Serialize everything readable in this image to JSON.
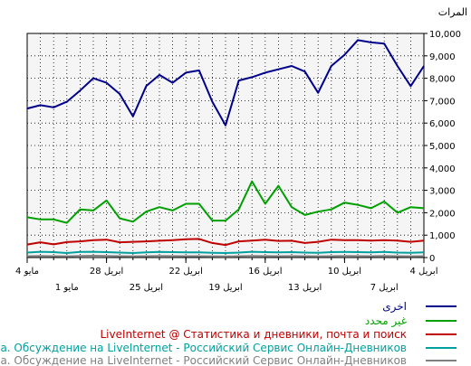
{
  "chart_data": {
    "type": "line",
    "ylabel": "المرات",
    "ylim": [
      0,
      10000
    ],
    "yticks": [
      "0",
      "1,000",
      "2,000",
      "3,000",
      "4,000",
      "5,000",
      "6,000",
      "7,000",
      "8,000",
      "9,000",
      "10,000"
    ],
    "grid": true,
    "legend_position": "bottom-right",
    "x_upper_labels": [
      {
        "label": "4 مايو",
        "index": 0
      },
      {
        "label": "28 ابريل",
        "index": 6
      },
      {
        "label": "22 ابريل",
        "index": 12
      },
      {
        "label": "16 ابريل",
        "index": 18
      },
      {
        "label": "10 ابريل",
        "index": 24
      },
      {
        "label": "4 ابريل",
        "index": 30
      }
    ],
    "x_lower_labels": [
      {
        "label": "1 مايو",
        "index": 3
      },
      {
        "label": "25 ابريل",
        "index": 9
      },
      {
        "label": "19 ابريل",
        "index": 15
      },
      {
        "label": "13 ابريل",
        "index": 21
      },
      {
        "label": "7 ابريل",
        "index": 27
      }
    ],
    "series": [
      {
        "name": "اخرى",
        "color": "#00008b",
        "values": [
          6650,
          6800,
          6700,
          6950,
          7450,
          8000,
          7800,
          7300,
          6300,
          7650,
          8150,
          7800,
          8250,
          8350,
          6950,
          5900,
          7900,
          8050,
          8250,
          8400,
          8550,
          8300,
          7350,
          8550,
          9050,
          9700,
          9600,
          9550,
          8550,
          7650,
          8550
        ]
      },
      {
        "name": "غير محدد",
        "color": "#00a000",
        "values": [
          1800,
          1700,
          1700,
          1550,
          2150,
          2100,
          2550,
          1750,
          1600,
          2050,
          2250,
          2100,
          2400,
          2400,
          1650,
          1650,
          2150,
          3400,
          2400,
          3200,
          2250,
          1900,
          2050,
          2150,
          2450,
          2350,
          2200,
          2500,
          2000,
          2250,
          2200
        ]
      },
      {
        "name": "LiveInternet @ Статистика и дневники, почта и поиск",
        "color": "#c00000",
        "values": [
          580,
          680,
          590,
          690,
          720,
          780,
          800,
          680,
          700,
          720,
          750,
          780,
          820,
          830,
          650,
          560,
          720,
          760,
          800,
          740,
          750,
          650,
          700,
          800,
          780,
          780,
          760,
          780,
          760,
          700,
          760
        ]
      },
      {
        "name": "Болталка. Обсуждение на LiveInternet - Российский Сервис Онлайн-Дневников",
        "color": "#00a0a0",
        "values": [
          220,
          260,
          240,
          200,
          250,
          260,
          240,
          220,
          200,
          230,
          250,
          240,
          230,
          230,
          210,
          200,
          220,
          260,
          240,
          230,
          240,
          220,
          210,
          240,
          250,
          240,
          230,
          250,
          220,
          210,
          230
        ]
      },
      {
        "name": "Болталка. Обсуждение на LiveInternet - Российский Сервис Онлайн-Дневников",
        "color": "#808080",
        "values": [
          60,
          70,
          60,
          55,
          70,
          80,
          70,
          60,
          55,
          60,
          70,
          65,
          60,
          60,
          55,
          50,
          60,
          70,
          65,
          60,
          65,
          60,
          55,
          60,
          70,
          65,
          60,
          70,
          60,
          55,
          60
        ]
      }
    ]
  }
}
